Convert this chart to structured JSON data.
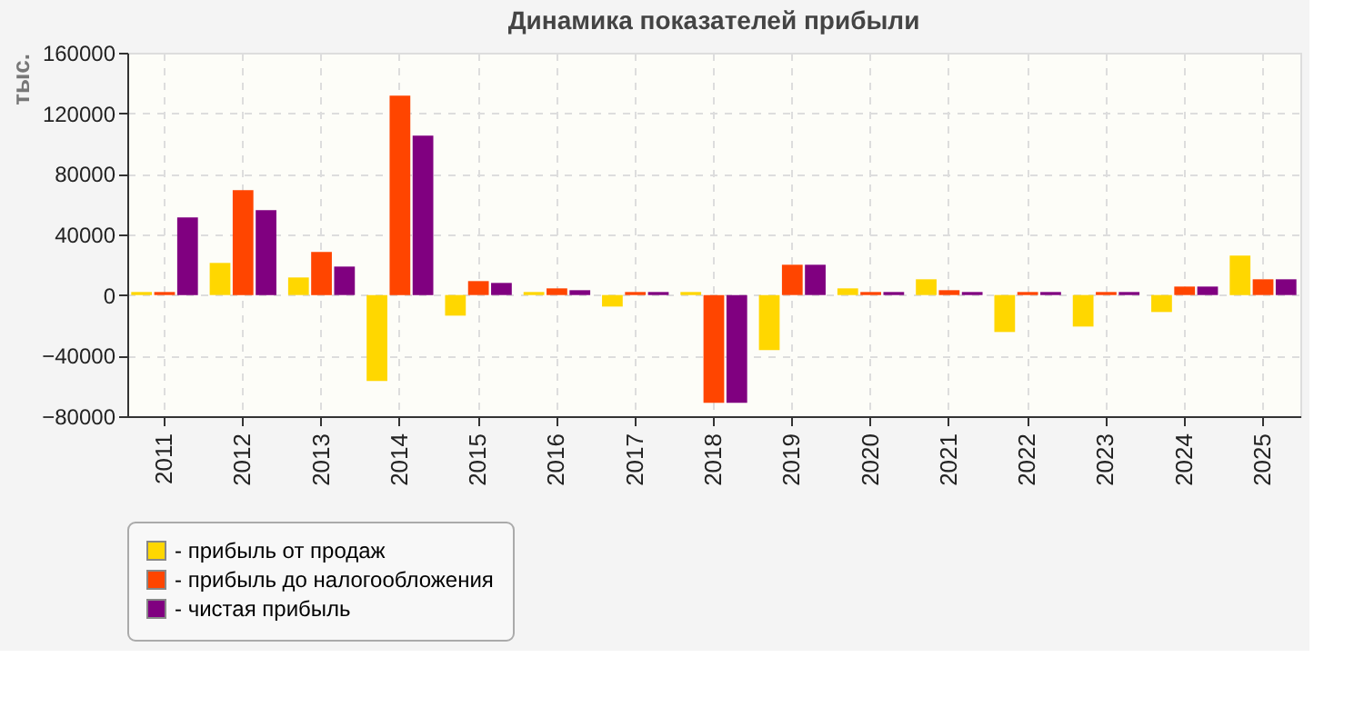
{
  "chart_data": {
    "type": "bar",
    "title": "Динамика показателей прибыли",
    "ylabel": "тыс.",
    "categories": [
      "2011",
      "2012",
      "2013",
      "2014",
      "2015",
      "2016",
      "2017",
      "2018",
      "2019",
      "2020",
      "2021",
      "2022",
      "2023",
      "2024",
      "2025"
    ],
    "series": [
      {
        "name": "- прибыль от продаж",
        "color": "#ffd700",
        "values": [
          2000,
          21200,
          11600,
          -56800,
          -13600,
          2000,
          -7600,
          2000,
          -36400,
          4400,
          10400,
          -24400,
          -20800,
          -11200,
          26000
        ]
      },
      {
        "name": "- прибыль до налогообложения",
        "color": "#ff4500",
        "values": [
          2000,
          69200,
          28400,
          131600,
          9200,
          4400,
          2000,
          -71200,
          20000,
          2000,
          3200,
          2000,
          2000,
          5600,
          10400
        ]
      },
      {
        "name": "- чистая прибыль",
        "color": "#800080",
        "values": [
          51200,
          56000,
          18800,
          105200,
          8000,
          3200,
          2000,
          -71200,
          20000,
          2000,
          2000,
          2000,
          2000,
          5600,
          10400
        ]
      }
    ],
    "ylim": [
      -80000,
      160000
    ],
    "yticks": [
      -80000,
      -40000,
      0,
      40000,
      80000,
      120000,
      160000
    ],
    "grid": true,
    "legend": "bottom"
  }
}
